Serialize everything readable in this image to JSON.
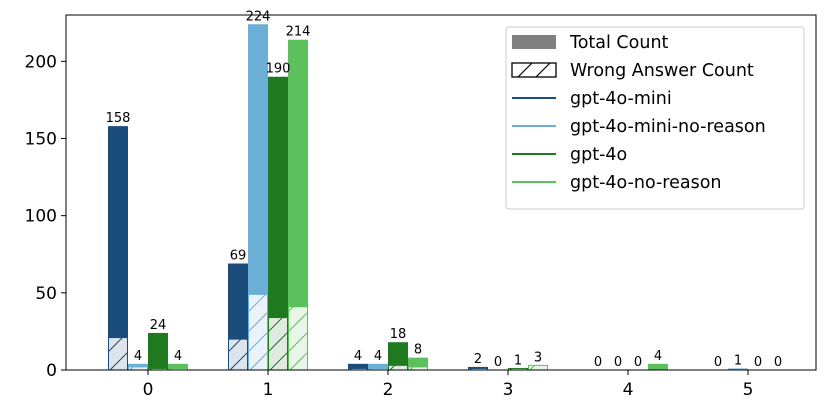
{
  "chart_data": {
    "type": "bar",
    "categories": [
      "0",
      "1",
      "2",
      "3",
      "4",
      "5"
    ],
    "ylim": [
      0,
      230
    ],
    "yticks": [
      0,
      50,
      100,
      150,
      200
    ],
    "grid": false,
    "legend_position": "top-right",
    "legend_style_entries": [
      {
        "label": "Total Count",
        "style": "solid-gray"
      },
      {
        "label": "Wrong Answer Count",
        "style": "hatched"
      }
    ],
    "series": [
      {
        "name": "gpt-4o-mini",
        "color": "#1a4d7c",
        "values": [
          158,
          69,
          4,
          2,
          0,
          0
        ],
        "wrong_values": [
          21,
          20,
          1,
          1,
          0,
          0
        ]
      },
      {
        "name": "gpt-4o-mini-no-reason",
        "color": "#6baed6",
        "values": [
          4,
          224,
          4,
          0,
          0,
          1
        ],
        "wrong_values": [
          2,
          49,
          1,
          0,
          0,
          0
        ]
      },
      {
        "name": "gpt-4o",
        "color": "#1f7a1f",
        "values": [
          24,
          190,
          18,
          1,
          0,
          0
        ],
        "wrong_values": [
          1,
          34,
          3,
          1,
          0,
          0
        ]
      },
      {
        "name": "gpt-4o-no-reason",
        "color": "#5cc05c",
        "values": [
          4,
          214,
          8,
          3,
          4,
          0
        ],
        "wrong_values": [
          1,
          41,
          2,
          3,
          0,
          0
        ]
      }
    ]
  }
}
